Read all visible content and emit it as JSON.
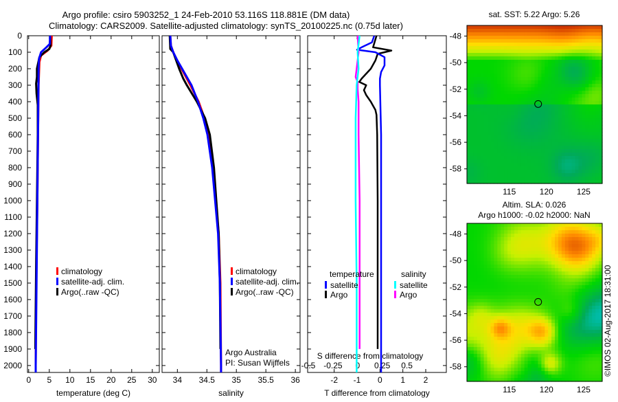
{
  "title": {
    "line1": "Argo profile: csiro 5903252_1 24-Feb-2010 53.116S 118.881E (DM data)",
    "line2": "Climatology: CARS2009. Satellite-adjusted climatology: synTS_20100225.nc (0.75d later)"
  },
  "colors": {
    "climatology": "#ff0000",
    "satellite": "#0000ff",
    "argo": "#000000",
    "sal_satellite": "#00ffff",
    "sal_argo": "#ff00ff"
  },
  "chart_data": [
    {
      "type": "line",
      "id": "temperature",
      "xlabel": "temperature (deg C)",
      "ylabel": "",
      "xlim": [
        -0.3,
        31.7
      ],
      "ylim": [
        2042,
        0
      ],
      "xticks": [
        0,
        5,
        10,
        15,
        20,
        25,
        30
      ],
      "xticklabels": [
        "0",
        "5",
        "10",
        "15",
        "20",
        "25",
        "30"
      ],
      "yticks": [
        0,
        100,
        200,
        300,
        400,
        500,
        600,
        700,
        800,
        900,
        1000,
        1100,
        1200,
        1300,
        1400,
        1500,
        1600,
        1700,
        1800,
        1900,
        2000
      ],
      "yticklabels": [
        "0",
        "100",
        "200",
        "300",
        "400",
        "500",
        "600",
        "700",
        "800",
        "900",
        "1000",
        "1100",
        "1200",
        "1300",
        "1400",
        "1500",
        "1600",
        "1700",
        "1800",
        "1900",
        "2000"
      ],
      "legend": [
        "climatology",
        "satellite-adj. clim.",
        "Argo(..raw -QC)"
      ],
      "series": [
        {
          "name": "climatology",
          "color": "#ff0000",
          "depth": [
            0,
            60,
            90,
            120,
            160,
            300,
            520,
            1000,
            1350,
            1600,
            2000,
            2042
          ],
          "values": [
            5.6,
            5.5,
            4.6,
            3.0,
            2.6,
            2.4,
            2.3,
            2.1,
            1.9,
            1.8,
            1.7,
            1.7
          ]
        },
        {
          "name": "Argo(..raw -QC)",
          "color": "#000000",
          "depth": [
            0,
            60,
            80,
            100,
            130,
            200,
            250,
            290,
            350,
            420,
            600,
            1000,
            1400,
            1900
          ],
          "values": [
            5.2,
            5.3,
            5.0,
            3.8,
            2.6,
            2.0,
            2.0,
            1.8,
            1.9,
            2.2,
            2.2,
            2.0,
            1.8,
            1.6
          ]
        },
        {
          "name": "satellite-adj. clim.",
          "color": "#0000ff",
          "depth": [
            0,
            50,
            70,
            100,
            140,
            200,
            500,
            1000,
            1500,
            2000,
            2042
          ],
          "values": [
            5.2,
            5.1,
            4.3,
            3.0,
            2.5,
            2.4,
            2.3,
            2.1,
            1.9,
            1.7,
            1.7
          ]
        }
      ]
    },
    {
      "type": "line",
      "id": "salinity",
      "xlabel": "salinity",
      "xlim": [
        33.74,
        36.08
      ],
      "ylim": [
        2042,
        0
      ],
      "xticks": [
        34,
        34.5,
        35,
        35.5,
        36
      ],
      "xticklabels": [
        "34",
        "34.5",
        "35",
        "35.5",
        "36"
      ],
      "legend": [
        "climatology",
        "satellite-adj. clim.",
        "Argo(..raw -QC)"
      ],
      "annotation": [
        "Argo Australia",
        "PI: Susan Wijffels"
      ],
      "series": [
        {
          "name": "climatology",
          "color": "#ff0000",
          "depth": [
            0,
            60,
            100,
            150,
            200,
            300,
            400,
            500,
            600,
            800,
            1000,
            1200,
            1500,
            2000,
            2042
          ],
          "values": [
            33.88,
            33.89,
            33.93,
            33.99,
            34.07,
            34.22,
            34.36,
            34.46,
            34.53,
            34.6,
            34.65,
            34.7,
            34.73,
            34.74,
            34.74
          ]
        },
        {
          "name": "Argo(..raw -QC)",
          "color": "#000000",
          "depth": [
            0,
            80,
            100,
            150,
            200,
            260,
            300,
            400,
            500,
            600,
            800,
            1000,
            1200,
            1500,
            1900
          ],
          "values": [
            33.87,
            33.88,
            33.93,
            33.98,
            34.03,
            34.1,
            34.16,
            34.33,
            34.47,
            34.55,
            34.62,
            34.66,
            34.7,
            34.72,
            34.73
          ]
        },
        {
          "name": "satellite-adj. clim.",
          "color": "#0000ff",
          "depth": [
            0,
            60,
            100,
            150,
            200,
            300,
            400,
            500,
            600,
            800,
            1000,
            1200,
            1500,
            2000,
            2042
          ],
          "values": [
            33.88,
            33.89,
            33.93,
            34.0,
            34.08,
            34.24,
            34.35,
            34.44,
            34.51,
            34.59,
            34.64,
            34.69,
            34.72,
            34.74,
            34.74
          ]
        }
      ]
    },
    {
      "type": "line",
      "id": "differences",
      "xlabel": "T difference from climatology",
      "x2label": "S difference from climatology",
      "xlim": [
        -3.16,
        2.9
      ],
      "x2lim": [
        -0.507,
        0.9
      ],
      "ylim": [
        2042,
        0
      ],
      "xticks": [
        -2,
        -1,
        0,
        1,
        2
      ],
      "xticklabels": [
        "-2",
        "-1",
        "0",
        "1",
        "2"
      ],
      "x2ticks": [
        -0.5,
        -0.25,
        0,
        0.25,
        0.5
      ],
      "x2ticklabels": [
        "-0.5",
        "-0.25",
        "0",
        "0.25",
        "0.5"
      ],
      "legend": {
        "temperature_title": "temperature",
        "salinity_title": "salinity",
        "entries": [
          "satellite",
          "Argo",
          "satellite",
          "Argo"
        ]
      },
      "series": [
        {
          "name": "temperature Argo",
          "axis": "T",
          "color": "#000000",
          "depth": [
            0,
            70,
            90,
            110,
            150,
            200,
            260,
            280,
            300,
            330,
            360,
            400,
            450,
            480,
            600,
            1000,
            1500,
            1900
          ],
          "values": [
            -0.15,
            -0.3,
            0.5,
            -0.1,
            -0.2,
            -0.4,
            -0.8,
            -0.9,
            -0.6,
            -0.7,
            -0.6,
            -0.4,
            -0.2,
            -0.15,
            -0.12,
            -0.1,
            -0.1,
            -0.1
          ]
        },
        {
          "name": "temperature satellite",
          "axis": "T",
          "color": "#0000ff",
          "depth": [
            0,
            40,
            70,
            85,
            100,
            130,
            180,
            220,
            260,
            300,
            600,
            1000,
            1500,
            2042
          ],
          "values": [
            -0.25,
            -0.35,
            -0.8,
            -1.0,
            -0.2,
            0.2,
            0.2,
            0.05,
            0.0,
            0.0,
            0.05,
            0.05,
            0.05,
            0.05
          ]
        },
        {
          "name": "salinity Argo",
          "axis": "S",
          "color": "#ff00ff",
          "depth": [
            0,
            100,
            150,
            200,
            250,
            280,
            320,
            400,
            600,
            1000,
            1500,
            1900
          ],
          "values": [
            0.0,
            0.01,
            0.0,
            -0.01,
            -0.02,
            0.0,
            0.0,
            0.01,
            0.01,
            0.02,
            0.02,
            0.02
          ]
        },
        {
          "name": "salinity satellite",
          "axis": "S",
          "color": "#00ffff",
          "depth": [
            0,
            100,
            200,
            300,
            500,
            1000,
            1500,
            2042
          ],
          "values": [
            0.02,
            0.0,
            0.01,
            -0.01,
            -0.02,
            -0.02,
            -0.01,
            -0.01
          ]
        }
      ]
    },
    {
      "type": "heatmap",
      "id": "sst-map",
      "title": "sat. SST: 5.22 Argo: 5.26",
      "xticks": [
        115,
        120,
        125
      ],
      "xticklabels": [
        "115",
        "120",
        "125"
      ],
      "yticks": [
        -48,
        -50,
        -52,
        -54,
        -56,
        -58
      ],
      "yticklabels": [
        "-48",
        "-50",
        "-52",
        "-54",
        "-56",
        "-58"
      ],
      "xlim": [
        109.3,
        127.5
      ],
      "ylim": [
        -59.1,
        -47.2
      ],
      "marker": {
        "lon": 118.881,
        "lat": -53.116
      }
    },
    {
      "type": "heatmap",
      "id": "sla-map",
      "title": "Altim. SLA: 0.026",
      "subtitle": "Argo h1000: -0.02 h2000: NaN",
      "xticks": [
        115,
        120,
        125
      ],
      "xticklabels": [
        "115",
        "120",
        "125"
      ],
      "yticks": [
        -48,
        -50,
        -52,
        -54,
        -56,
        -58
      ],
      "yticklabels": [
        "-48",
        "-50",
        "-52",
        "-54",
        "-56",
        "-58"
      ],
      "xlim": [
        109.3,
        127.5
      ],
      "ylim": [
        -59.1,
        -47.2
      ],
      "marker": {
        "lon": 118.881,
        "lat": -53.116
      }
    }
  ],
  "footer": "©IMOS 02-Aug-2017 18:31:00"
}
